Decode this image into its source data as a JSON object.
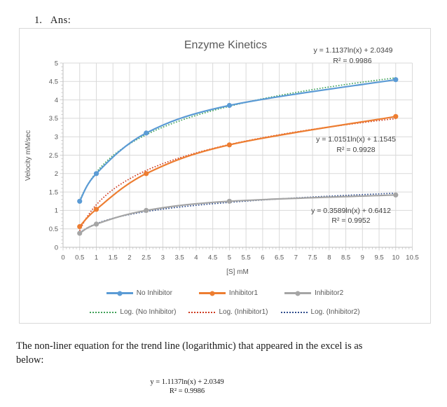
{
  "document": {
    "list_number": "1.",
    "answer_label": "Ans:",
    "paragraph_line1": "The non-liner equation for the trend line (logarithmic) that appeared in the excel is as",
    "paragraph_line2": "below:",
    "equation": "y = 1.1137ln(x) + 2.0349",
    "equation_r2": "R² = 0.9986"
  },
  "chart_data": {
    "type": "line",
    "title": "Enzyme Kinetics",
    "xlabel": "[S] mM",
    "ylabel": "Velocity mM/sec",
    "xlim": [
      0,
      10.5
    ],
    "ylim": [
      0,
      5
    ],
    "x_tick_step": 0.5,
    "y_tick_step": 0.5,
    "grid": true,
    "legend_position": "bottom",
    "x": [
      0.5,
      1,
      2.5,
      5,
      10
    ],
    "series": [
      {
        "name": "No Inhibitor",
        "values": [
          1.25,
          2.0,
          3.1,
          3.85,
          4.55
        ],
        "color": "#5B9BD5"
      },
      {
        "name": "Inhibitor1",
        "values": [
          0.56,
          1.03,
          2.0,
          2.78,
          3.55
        ],
        "color": "#ED7D31"
      },
      {
        "name": "Inhibitor2",
        "values": [
          0.38,
          0.63,
          1.0,
          1.25,
          1.42
        ],
        "color": "#A5A5A5"
      }
    ],
    "trendlines": [
      {
        "name": "Log. (No Inhibitor)",
        "a": 1.1137,
        "b": 2.0349,
        "color": "#3EA157",
        "equation": "y = 1.1137ln(x) + 2.0349",
        "r2_label": "R² = 0.9986"
      },
      {
        "name": "Log. (Inhibitor1)",
        "a": 1.0151,
        "b": 1.1545,
        "color": "#CE3A1F",
        "equation": "y = 1.0151ln(x) + 1.1545",
        "r2_label": "R² = 0.9928"
      },
      {
        "name": "Log. (Inhibitor2)",
        "a": 0.3589,
        "b": 0.6412,
        "color": "#2E4C8C",
        "equation": "y = 0.3589ln(x) + 0.6412",
        "r2_label": "R² = 0.9952"
      }
    ]
  }
}
